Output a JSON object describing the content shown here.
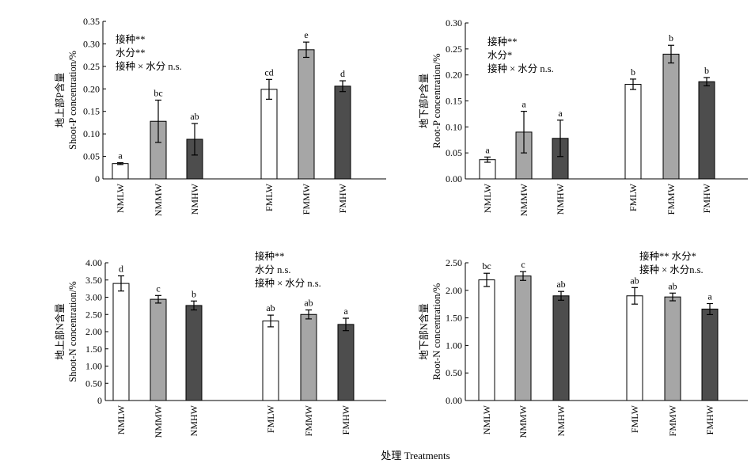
{
  "figure": {
    "x_title": "处理 Treatments"
  },
  "colors": {
    "LW": "#ffffff",
    "MW": "#a6a6a6",
    "HW": "#4d4d4d",
    "axis": "#000000"
  },
  "chart_data": [
    {
      "type": "bar",
      "panel": "top-left",
      "categories": [
        "NMLW",
        "NMMW",
        "NMHW",
        "FMLW",
        "FMMW",
        "FMHW"
      ],
      "values": [
        0.034,
        0.128,
        0.088,
        0.199,
        0.287,
        0.206
      ],
      "errors": [
        0.002,
        0.047,
        0.035,
        0.022,
        0.017,
        0.012
      ],
      "letters": [
        "a",
        "bc",
        "ab",
        "cd",
        "e",
        "d"
      ],
      "ylabel_cn": "地上部P含量",
      "ylabel_en": "Shoot-P concentration/%",
      "ylim": [
        0,
        0.35
      ],
      "yticks": [
        "0",
        "0.05",
        "0.10",
        "0.15",
        "0.20",
        "0.25",
        "0.30",
        "0.35"
      ],
      "annotations": [
        "接种**",
        "水分**",
        "接种 × 水分 n.s."
      ],
      "grid": false
    },
    {
      "type": "bar",
      "panel": "top-right",
      "categories": [
        "NMLW",
        "NMMW",
        "NMHW",
        "FMLW",
        "FMMW",
        "FMHW"
      ],
      "values": [
        0.037,
        0.09,
        0.078,
        0.182,
        0.24,
        0.187
      ],
      "errors": [
        0.005,
        0.04,
        0.035,
        0.01,
        0.017,
        0.008
      ],
      "letters": [
        "a",
        "a",
        "a",
        "b",
        "b",
        "b"
      ],
      "ylabel_cn": "地下部P含量",
      "ylabel_en": "Root-P concentration/%",
      "ylim": [
        0,
        0.3
      ],
      "yticks": [
        "0.00",
        "0.05",
        "0.10",
        "0.15",
        "0.20",
        "0.25",
        "0.30"
      ],
      "annotations": [
        "接种**",
        "水分*",
        "接种 × 水分 n.s."
      ],
      "grid": false
    },
    {
      "type": "bar",
      "panel": "bottom-left",
      "categories": [
        "NMLW",
        "NMMW",
        "NMHW",
        "FMLW",
        "FMMW",
        "FMHW"
      ],
      "values": [
        3.4,
        2.94,
        2.76,
        2.31,
        2.5,
        2.21
      ],
      "errors": [
        0.22,
        0.11,
        0.13,
        0.17,
        0.13,
        0.18
      ],
      "letters": [
        "d",
        "c",
        "b",
        "ab",
        "ab",
        "a"
      ],
      "ylabel_cn": "地上部N含量",
      "ylabel_en": "Shoot-N concentration/%",
      "ylim": [
        0,
        4
      ],
      "yticks": [
        "0",
        "0.50",
        "1.00",
        "1.50",
        "2.00",
        "2.50",
        "3.00",
        "3.50",
        "4.00"
      ],
      "annotations": [
        "接种**",
        "水分 n.s.",
        "接种 × 水分 n.s."
      ],
      "grid": false
    },
    {
      "type": "bar",
      "panel": "bottom-right",
      "categories": [
        "NMLW",
        "NMMW",
        "NMHW",
        "FMLW",
        "FMMW",
        "FMHW"
      ],
      "values": [
        2.19,
        2.26,
        1.9,
        1.9,
        1.88,
        1.66
      ],
      "errors": [
        0.12,
        0.08,
        0.08,
        0.15,
        0.07,
        0.1
      ],
      "letters": [
        "bc",
        "c",
        "ab",
        "ab",
        "ab",
        "a"
      ],
      "ylabel_cn": "地下部N含量",
      "ylabel_en": "Root-N concentration/%",
      "ylim": [
        0,
        2.5
      ],
      "yticks": [
        "0.00",
        "0.50",
        "1.00",
        "1.50",
        "2.00",
        "2.50"
      ],
      "annotations": [
        "接种**  水分*",
        "接种 × 水分n.s."
      ],
      "grid": false
    }
  ]
}
